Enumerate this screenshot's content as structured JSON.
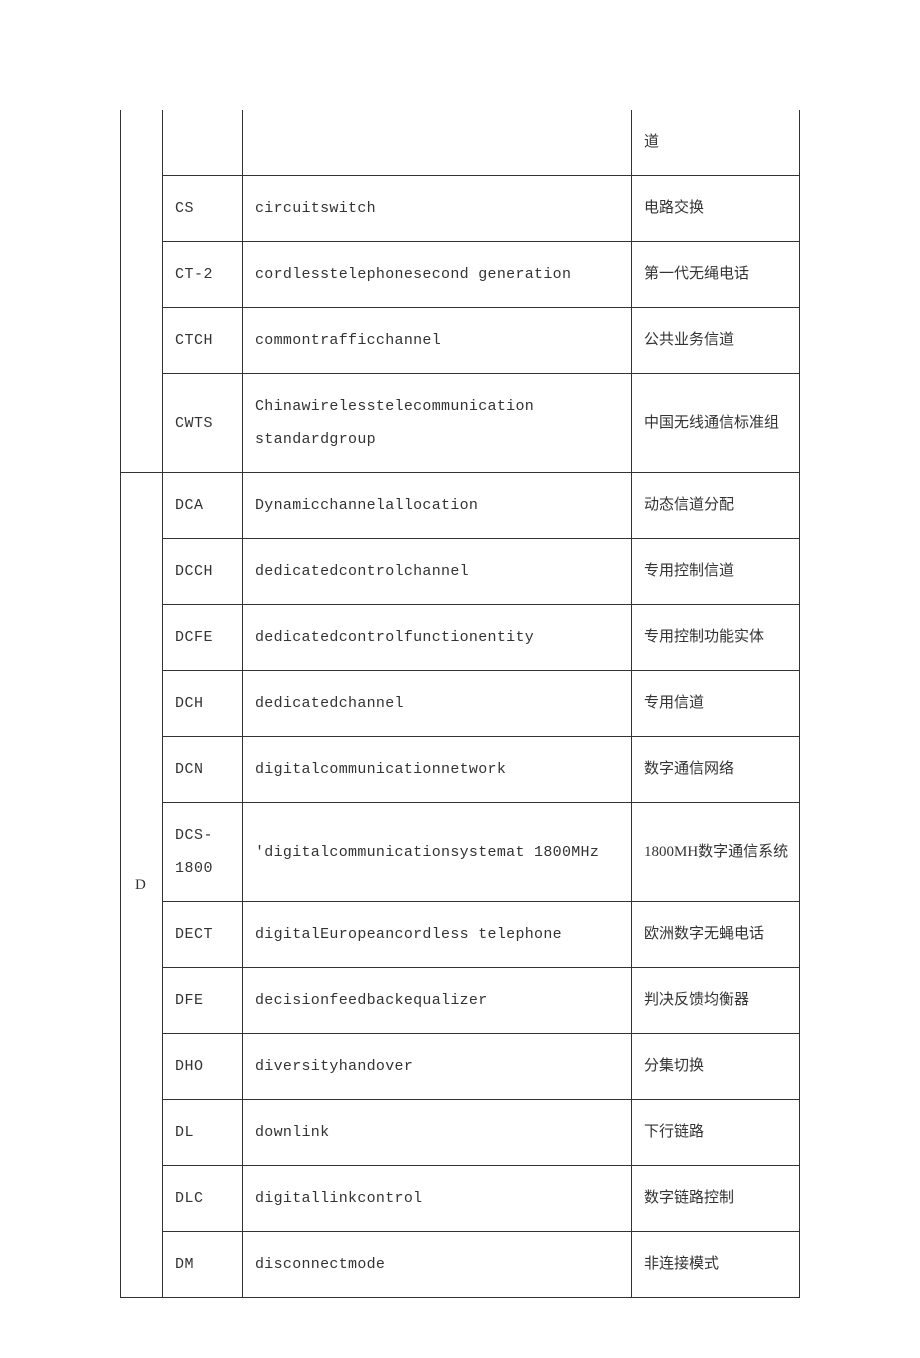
{
  "table": {
    "border_color": "#333333",
    "text_color": "#333333",
    "background_color": "#ffffff",
    "font_size": 15,
    "line_height": 2.2,
    "col_widths": {
      "letter": 42,
      "abbr": 80,
      "chinese": 168
    },
    "groups": [
      {
        "letter": "",
        "continuation": true,
        "rows": [
          {
            "abbr": "",
            "eng": "",
            "chn": "道"
          },
          {
            "abbr": "CS",
            "eng": "circuitswitch",
            "chn": "电路交换"
          },
          {
            "abbr": "CT-2",
            "eng": "cordlesstelephonesecond generation",
            "chn": "第一代无绳电话"
          },
          {
            "abbr": "CTCH",
            "eng": "commontrafficchannel",
            "chn": "公共业务信道"
          },
          {
            "abbr": "CWTS",
            "eng": "Chinawirelesstelecommunication standardgroup",
            "chn": "中国无线通信标准组"
          }
        ]
      },
      {
        "letter": "D",
        "continuation": false,
        "rows": [
          {
            "abbr": "DCA",
            "eng": "Dynamicchannelallocation",
            "chn": "动态信道分配"
          },
          {
            "abbr": "DCCH",
            "eng": "dedicatedcontrolchannel",
            "chn": "专用控制信道"
          },
          {
            "abbr": "DCFE",
            "eng": "dedicatedcontrolfunctionentity",
            "chn": "专用控制功能实体"
          },
          {
            "abbr": "DCH",
            "eng": "dedicatedchannel",
            "chn": "专用信道"
          },
          {
            "abbr": "DCN",
            "eng": "digitalcommunicationnetwork",
            "chn": "数字通信网络"
          },
          {
            "abbr": "DCS-1800",
            "eng": "'digitalcommunicationsystemat 1800MHz",
            "chn": "1800MH数字通信系统"
          },
          {
            "abbr": "DECT",
            "eng": "digitalEuropeancordless telephone",
            "chn": "欧洲数字无蝇电话"
          },
          {
            "abbr": "DFE",
            "eng": "decisionfeedbackequalizer",
            "chn": "判决反馈均衡器"
          },
          {
            "abbr": "DHO",
            "eng": "diversityhandover",
            "chn": "分集切换"
          },
          {
            "abbr": "DL",
            "eng": "downlink",
            "chn": "下行链路"
          },
          {
            "abbr": "DLC",
            "eng": "digitallinkcontrol",
            "chn": "数字链路控制"
          },
          {
            "abbr": "DM",
            "eng": "disconnectmode",
            "chn": "非连接模式"
          }
        ]
      }
    ]
  }
}
